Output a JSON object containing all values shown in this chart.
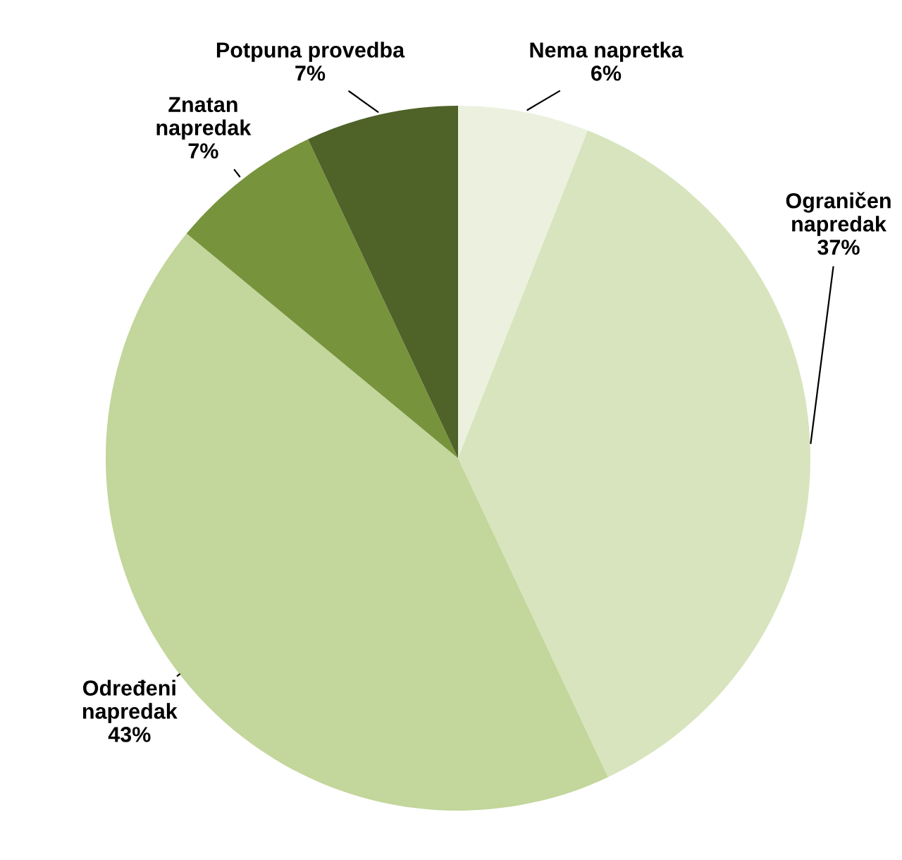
{
  "chart_data": {
    "type": "pie",
    "categories": [
      "Nema napretka",
      "Ograničen\nnapredak",
      "Određeni\nnapredak",
      "Znatan\nnapredak",
      "Potpuna provedba"
    ],
    "values": [
      6,
      37,
      43,
      7,
      7
    ],
    "value_labels": [
      "6%",
      "37%",
      "43%",
      "7%",
      "7%"
    ],
    "colors": [
      "#ebf1de",
      "#d7e4bd",
      "#c3d69b",
      "#77933c",
      "#4f6228"
    ],
    "legend": false
  }
}
